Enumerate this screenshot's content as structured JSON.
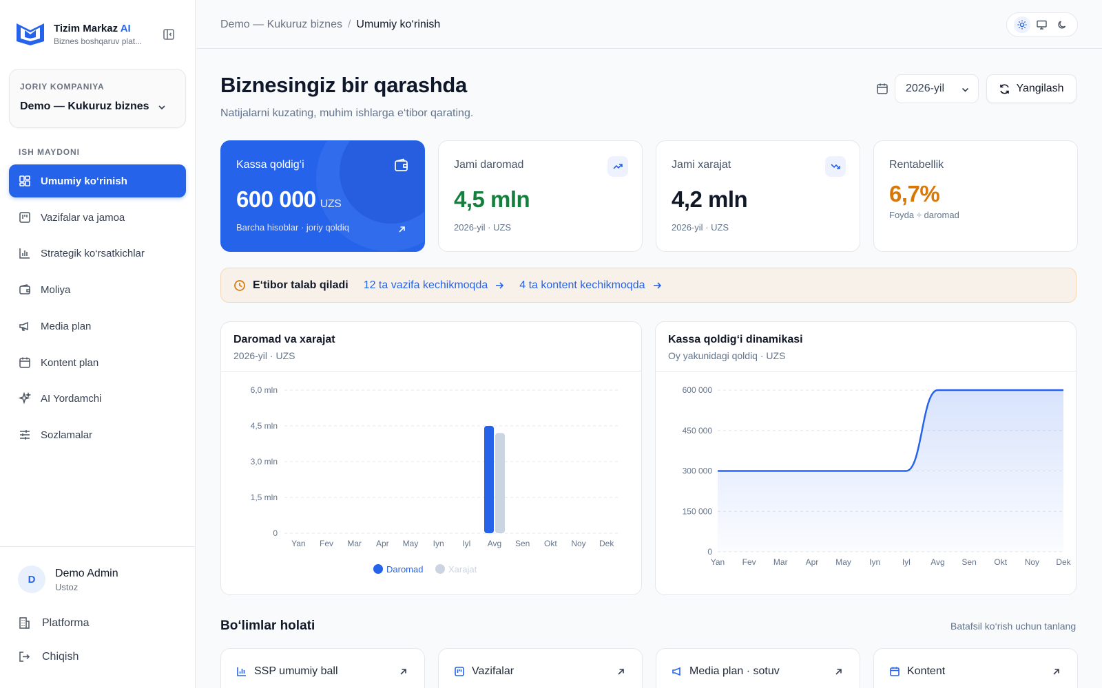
{
  "brand": {
    "name": "Tizim Markaz",
    "name_ai": "AI",
    "subtitle": "Biznes boshqaruv plat..."
  },
  "company": {
    "label": "JORIY KOMPANIYA",
    "name": "Demo — Kukuruz biznes"
  },
  "sidebar": {
    "section_label": "ISH MAYDONI",
    "items": [
      {
        "label": "Umumiy ko‘rinish",
        "icon": "dashboard-icon",
        "active": true
      },
      {
        "label": "Vazifalar va jamoa",
        "icon": "kanban-icon"
      },
      {
        "label": "Strategik ko‘rsatkichlar",
        "icon": "bar-chart-icon"
      },
      {
        "label": "Moliya",
        "icon": "wallet-icon"
      },
      {
        "label": "Media plan",
        "icon": "megaphone-icon"
      },
      {
        "label": "Kontent plan",
        "icon": "calendar-icon"
      },
      {
        "label": "AI Yordamchi",
        "icon": "sparkles-icon"
      },
      {
        "label": "Sozlamalar",
        "icon": "sliders-icon"
      }
    ]
  },
  "user": {
    "initial": "D",
    "name": "Demo Admin",
    "role": "Ustoz"
  },
  "bottom_nav": {
    "platform": "Platforma",
    "logout": "Chiqish"
  },
  "breadcrumb": {
    "parent": "Demo — Kukuruz biznes",
    "separator": "/",
    "current": "Umumiy ko‘rinish"
  },
  "header": {
    "title": "Biznesingiz bir qarashda",
    "subtitle": "Natijalarni kuzating, muhim ishlarga e‘tibor qarating.",
    "year": "2026-yil",
    "refresh": "Yangilash"
  },
  "kpis": {
    "cash": {
      "label": "Kassa qoldig‘i",
      "value": "600 000",
      "unit": "UZS",
      "foot": "Barcha hisoblar · joriy qoldiq"
    },
    "income": {
      "label": "Jami daromad",
      "value": "4,5 mln",
      "foot": "2026-yil · UZS",
      "color": "#15803d"
    },
    "expense": {
      "label": "Jami xarajat",
      "value": "4,2 mln",
      "foot": "2026-yil · UZS"
    },
    "profit": {
      "label": "Rentabellik",
      "value": "6,7%",
      "foot": "Foyda ÷ daromad",
      "color": "#d97706"
    }
  },
  "alert": {
    "title": "E‘tibor talab qiladi",
    "tasks_link": "12 ta vazifa kechikmoqda",
    "content_link": "4 ta kontent kechikmoqda"
  },
  "chart1": {
    "title": "Daromad va xarajat",
    "subtitle": "2026-yil · UZS",
    "legend": [
      "Daromad",
      "Xarajat"
    ]
  },
  "chart2": {
    "title": "Kassa qoldig‘i dinamikasi",
    "subtitle": "Oy yakunidagi qoldiq · UZS"
  },
  "chart_data": [
    {
      "type": "bar",
      "title": "Daromad va xarajat",
      "categories": [
        "Yan",
        "Fev",
        "Mar",
        "Apr",
        "May",
        "Iyn",
        "Iyl",
        "Avg",
        "Sen",
        "Okt",
        "Noy",
        "Dek"
      ],
      "series": [
        {
          "name": "Daromad",
          "values": [
            0,
            0,
            0,
            0,
            0,
            0,
            0,
            4500000,
            0,
            0,
            0,
            0
          ],
          "color": "#2563eb"
        },
        {
          "name": "Xarajat",
          "values": [
            0,
            0,
            0,
            0,
            0,
            0,
            0,
            4200000,
            0,
            0,
            0,
            0
          ],
          "color": "#cbd5e1"
        }
      ],
      "y_ticks": [
        "0",
        "1,5 mln",
        "3,0 mln",
        "4,5 mln",
        "6,0 mln"
      ],
      "ylim": [
        0,
        6000000
      ],
      "grid": true,
      "legend_position": "bottom"
    },
    {
      "type": "area",
      "title": "Kassa qoldig‘i dinamikasi",
      "categories": [
        "Yan",
        "Fev",
        "Mar",
        "Apr",
        "May",
        "Iyn",
        "Iyl",
        "Avg",
        "Sen",
        "Okt",
        "Noy",
        "Dek"
      ],
      "series": [
        {
          "values": [
            300000,
            300000,
            300000,
            300000,
            300000,
            300000,
            300000,
            600000,
            600000,
            600000,
            600000,
            600000
          ],
          "color": "#2563eb"
        }
      ],
      "y_ticks": [
        "0",
        "150 000",
        "300 000",
        "450 000",
        "600 000"
      ],
      "ylim": [
        0,
        600000
      ],
      "grid": true
    }
  ],
  "departments": {
    "title": "Bo‘limlar holati",
    "hint": "Batafsil ko‘rish uchun tanlang",
    "items": [
      {
        "label": "SSP umumiy ball",
        "icon": "bar-chart-icon"
      },
      {
        "label": "Vazifalar",
        "icon": "kanban-icon"
      },
      {
        "label": "Media plan · sotuv",
        "icon": "megaphone-icon"
      },
      {
        "label": "Kontent",
        "icon": "calendar-icon"
      }
    ]
  },
  "colors": {
    "accent": "#2563eb",
    "success": "#15803d",
    "warning": "#d97706",
    "alert_bg": "#f8f1ea"
  }
}
